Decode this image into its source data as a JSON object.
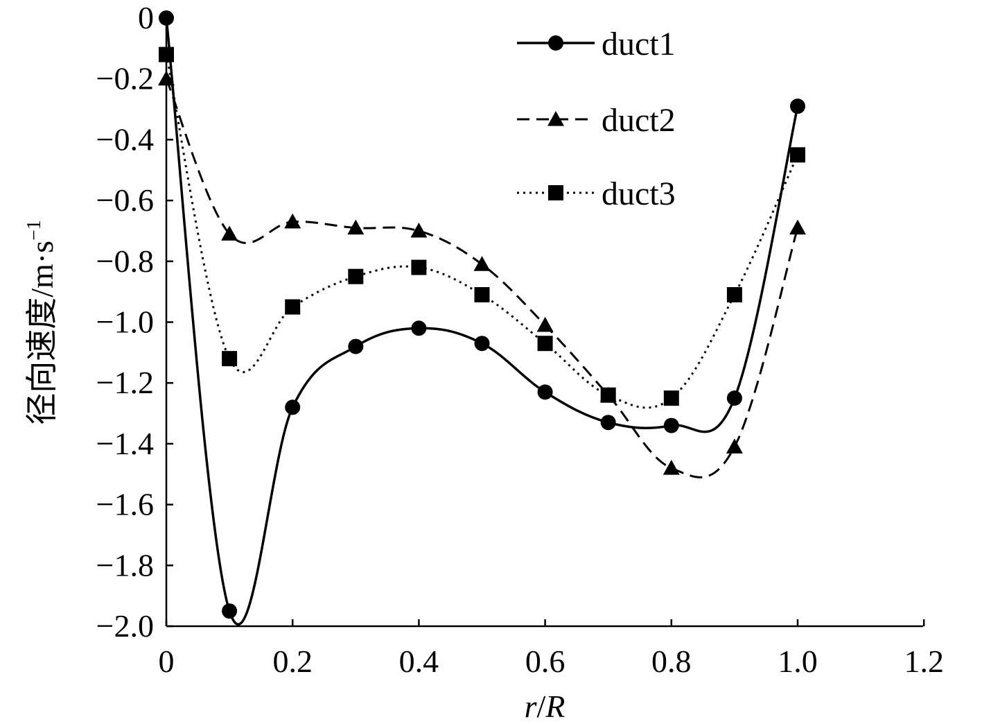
{
  "chart_data": {
    "type": "line",
    "xlabel_parts": [
      "r",
      "/",
      "R"
    ],
    "ylabel": "径向速度/m·s",
    "ylabel_sup": "−1",
    "xlim": [
      0,
      1.2
    ],
    "ylim": [
      -2.0,
      0
    ],
    "x_ticks": [
      0,
      0.2,
      0.4,
      0.6,
      0.8,
      1.0,
      1.2
    ],
    "x_tick_labels": [
      "0",
      "0.2",
      "0.4",
      "0.6",
      "0.8",
      "1.0",
      "1.2"
    ],
    "y_ticks": [
      0,
      -0.2,
      -0.4,
      -0.6,
      -0.8,
      -1.0,
      -1.2,
      -1.4,
      -1.6,
      -1.8,
      -2.0
    ],
    "y_tick_labels": [
      "0",
      "−0.2",
      "−0.4",
      "−0.6",
      "−0.8",
      "−1.0",
      "−1.2",
      "−1.4",
      "−1.6",
      "−1.8",
      "−2.0"
    ],
    "grid": false,
    "legend_position": "top-right",
    "series": [
      {
        "name": "duct1",
        "line_style": "solid",
        "marker": "circle",
        "x": [
          0,
          0.1,
          0.2,
          0.3,
          0.4,
          0.5,
          0.6,
          0.7,
          0.8,
          0.9,
          1.0
        ],
        "y": [
          0,
          -1.95,
          -1.28,
          -1.08,
          -1.02,
          -1.07,
          -1.23,
          -1.33,
          -1.34,
          -1.25,
          -0.29
        ]
      },
      {
        "name": "duct2",
        "line_style": "dashed",
        "marker": "triangle",
        "x": [
          0,
          0.1,
          0.2,
          0.3,
          0.4,
          0.5,
          0.6,
          0.7,
          0.8,
          0.9,
          1.0
        ],
        "y": [
          -0.2,
          -0.71,
          -0.67,
          -0.69,
          -0.7,
          -0.81,
          -1.01,
          -1.24,
          -1.48,
          -1.41,
          -0.69
        ]
      },
      {
        "name": "duct3",
        "line_style": "dotted",
        "marker": "square",
        "x": [
          0,
          0.1,
          0.2,
          0.3,
          0.4,
          0.5,
          0.6,
          0.7,
          0.8,
          0.9,
          1.0
        ],
        "y": [
          -0.12,
          -1.12,
          -0.95,
          -0.85,
          -0.82,
          -0.91,
          -1.07,
          -1.24,
          -1.25,
          -0.91,
          -0.45
        ]
      }
    ]
  }
}
